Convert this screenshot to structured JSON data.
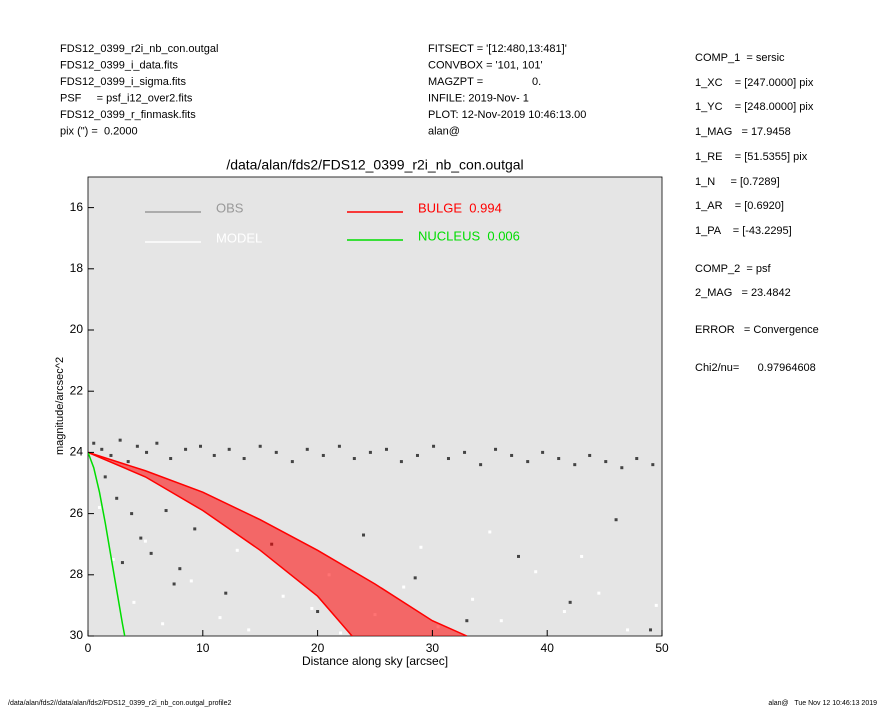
{
  "header_left": [
    "FDS12_0399_r2i_nb_con.outgal",
    "FDS12_0399_i_data.fits",
    "FDS12_0399_i_sigma.fits",
    "PSF     = psf_i12_over2.fits",
    "FDS12_0399_r_finmask.fits",
    "pix (\") =  0.2000"
  ],
  "header_middle": [
    "FITSECT = '[12:480,13:481]'",
    "CONVBOX = '101, 101'",
    "MAGZPT =                0.",
    "INFILE: 2019-Nov- 1",
    "PLOT: 12-Nov-2019 10:46:13.00",
    "alan@"
  ],
  "parameters": [
    "COMP_1  = sersic",
    "1_XC    = [247.0000] pix",
    "1_YC    = [248.0000] pix",
    "1_MAG   = 17.9458",
    "1_RE    = [51.5355] pix",
    "1_N     = [0.7289]",
    "1_AR    = [0.6920]",
    "1_PA    = [-43.2295]",
    "COMP_2  = psf",
    "2_MAG   = 23.4842",
    "ERROR   = Convergence",
    "Chi2/nu=      0.97964608"
  ],
  "footer_left": "/data/alan/fds2//data/alan/fds2/FDS12_0399_r2i_nb_con.outgal_profile2",
  "footer_right": "alan@   Tue Nov 12 10:46:13 2019",
  "chart_data": {
    "type": "scatter",
    "title": "/data/alan/fds2/FDS12_0399_r2i_nb_con.outgal",
    "x_label": "Distance along sky [arcsec]",
    "y_label": "magnitude/arcsec^2",
    "xlim": [
      0,
      50
    ],
    "ylim": [
      30,
      15
    ],
    "xticks": [
      0,
      10,
      20,
      30,
      40,
      50
    ],
    "yticks": [
      16,
      18,
      20,
      22,
      24,
      26,
      28,
      30
    ],
    "background": "#e5e5e5",
    "series": [
      {
        "name": "OBS",
        "color": "#444444",
        "legend_color": "#999999",
        "x": [
          0.5,
          1.2,
          2.0,
          2.8,
          3.5,
          4.3,
          5.1,
          6.0,
          7.2,
          8.5,
          9.8,
          11.0,
          12.3,
          13.6,
          15.0,
          16.4,
          17.8,
          19.1,
          20.5,
          21.9,
          23.2,
          24.6,
          26.0,
          27.3,
          28.7,
          30.1,
          31.4,
          32.8,
          34.2,
          35.5,
          36.9,
          38.3,
          39.6,
          41.0,
          42.4,
          43.7,
          45.1,
          46.5,
          47.8,
          49.2,
          1.5,
          2.5,
          3.8,
          4.6,
          5.5,
          6.8,
          8.0,
          9.3,
          12.0,
          16.0,
          20.0,
          24.0,
          28.5,
          33.0,
          37.5,
          42.0,
          46.0,
          49.0,
          3.0,
          7.5
        ],
        "values": [
          23.7,
          23.9,
          24.1,
          23.6,
          24.3,
          23.8,
          24.0,
          23.7,
          24.2,
          23.9,
          23.8,
          24.1,
          23.9,
          24.2,
          23.8,
          24.0,
          24.3,
          23.9,
          24.1,
          23.8,
          24.2,
          24.0,
          23.9,
          24.3,
          24.1,
          23.8,
          24.2,
          24.0,
          24.4,
          23.9,
          24.1,
          24.3,
          24.0,
          24.2,
          24.4,
          24.1,
          24.3,
          24.5,
          24.2,
          24.4,
          24.8,
          25.5,
          26.0,
          26.8,
          27.3,
          25.9,
          27.8,
          26.5,
          28.6,
          27.0,
          29.2,
          26.7,
          28.1,
          29.5,
          27.4,
          28.9,
          26.2,
          29.8,
          27.6,
          28.3
        ]
      },
      {
        "name": "MODEL",
        "color": "#ffffff",
        "legend_color": "#ffffff",
        "x": [
          1.0,
          2.2,
          4.0,
          6.5,
          9.0,
          11.5,
          14.0,
          17.0,
          19.5,
          22.0,
          25.0,
          27.5,
          30.5,
          33.5,
          36.0,
          39.0,
          41.5,
          44.5,
          47.0,
          49.5,
          5.0,
          13.0,
          21.0,
          29.0,
          35.0,
          43.0
        ],
        "values": [
          25.8,
          27.5,
          28.9,
          29.6,
          28.2,
          29.4,
          29.8,
          28.7,
          29.1,
          29.9,
          29.3,
          28.4,
          29.7,
          28.8,
          29.5,
          27.9,
          29.2,
          28.6,
          29.8,
          29.0,
          26.9,
          27.2,
          28.0,
          27.1,
          26.6,
          27.4
        ]
      },
      {
        "name": "BULGE  0.994",
        "color": "#ff0000",
        "legend_color": "#ff0000",
        "curves": [
          {
            "x": [
              0,
              5,
              10,
              15,
              20,
              25,
              30,
              33
            ],
            "values": [
              24,
              24.6,
              25.3,
              26.2,
              27.2,
              28.3,
              29.5,
              30
            ]
          },
          {
            "x": [
              0,
              5,
              10,
              15,
              20,
              23
            ],
            "values": [
              24,
              24.8,
              25.9,
              27.2,
              28.7,
              30
            ]
          }
        ]
      },
      {
        "name": "NUCLEUS  0.006",
        "color": "#00dd00",
        "legend_color": "#00dd00",
        "curves": [
          {
            "x": [
              0,
              0.5,
              1,
              1.5,
              2,
              2.5,
              3,
              3.2
            ],
            "values": [
              24,
              24.5,
              25.3,
              26.3,
              27.4,
              28.5,
              29.6,
              30
            ]
          }
        ]
      }
    ]
  }
}
